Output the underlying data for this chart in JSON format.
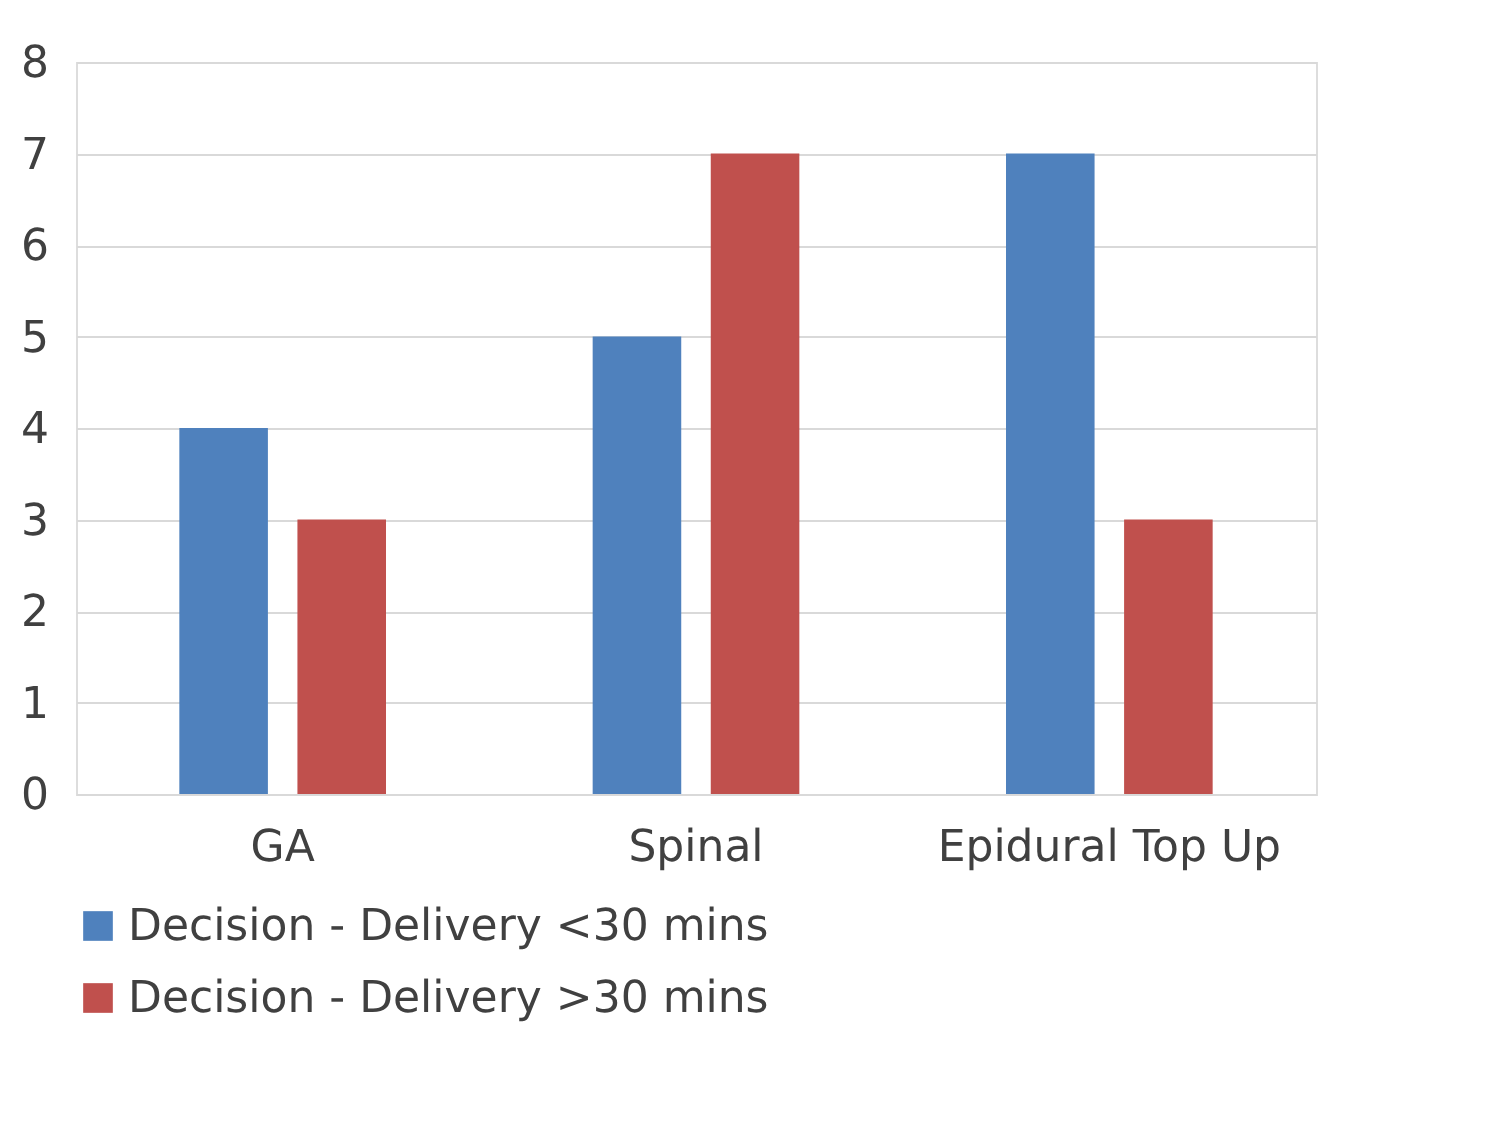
{
  "chart_data": {
    "type": "bar",
    "categories": [
      "GA",
      "Spinal",
      "Epidural Top Up"
    ],
    "series": [
      {
        "name": "Decision - Delivery <30 mins",
        "color": "#4f81bd",
        "values": [
          4,
          5,
          7
        ]
      },
      {
        "name": "Decision - Delivery >30 mins",
        "color": "#c0504d",
        "values": [
          3,
          7,
          3
        ]
      }
    ],
    "ylim": [
      0,
      8
    ],
    "yticks": [
      0,
      1,
      2,
      3,
      4,
      5,
      6,
      7,
      8
    ],
    "grid": "y",
    "legend": "bottom"
  }
}
